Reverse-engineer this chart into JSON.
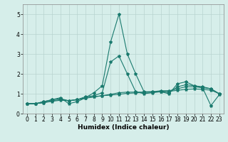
{
  "xlabel": "Humidex (Indice chaleur)",
  "x": [
    0,
    1,
    2,
    3,
    4,
    5,
    6,
    7,
    8,
    9,
    10,
    11,
    12,
    13,
    14,
    15,
    16,
    17,
    18,
    19,
    20,
    21,
    22,
    23
  ],
  "lines": [
    [
      0.5,
      0.5,
      0.6,
      0.7,
      0.8,
      0.5,
      0.6,
      0.8,
      1.05,
      1.4,
      3.6,
      5.0,
      3.0,
      2.0,
      1.1,
      1.1,
      1.1,
      1.0,
      1.5,
      1.6,
      1.4,
      1.3,
      0.4,
      0.95
    ],
    [
      0.5,
      0.5,
      0.6,
      0.7,
      0.75,
      0.65,
      0.7,
      0.85,
      0.9,
      1.05,
      2.6,
      2.9,
      2.0,
      1.1,
      1.0,
      1.05,
      1.1,
      1.05,
      1.35,
      1.45,
      1.4,
      1.35,
      1.25,
      1.0
    ],
    [
      0.5,
      0.5,
      0.55,
      0.65,
      0.7,
      0.65,
      0.7,
      0.8,
      0.85,
      0.9,
      0.97,
      1.05,
      1.08,
      1.08,
      1.08,
      1.1,
      1.15,
      1.15,
      1.25,
      1.35,
      1.35,
      1.3,
      1.25,
      1.0
    ],
    [
      0.5,
      0.5,
      0.55,
      0.62,
      0.67,
      0.65,
      0.7,
      0.77,
      0.84,
      0.9,
      0.93,
      0.97,
      1.02,
      1.04,
      1.07,
      1.07,
      1.12,
      1.12,
      1.17,
      1.22,
      1.24,
      1.22,
      1.18,
      1.0
    ]
  ],
  "line_color": "#1a7a6e",
  "bg_color": "#d6eeea",
  "grid_color": "#b8d4d0",
  "ylim": [
    0,
    5.5
  ],
  "xlim": [
    -0.5,
    23.5
  ],
  "yticks": [
    0,
    1,
    2,
    3,
    4,
    5
  ],
  "xticks": [
    0,
    1,
    2,
    3,
    4,
    5,
    6,
    7,
    8,
    9,
    10,
    11,
    12,
    13,
    14,
    15,
    16,
    17,
    18,
    19,
    20,
    21,
    22,
    23
  ],
  "marker": "*",
  "markersize": 3,
  "linewidth": 0.8,
  "tick_fontsize": 5.5,
  "xlabel_fontsize": 6.5
}
